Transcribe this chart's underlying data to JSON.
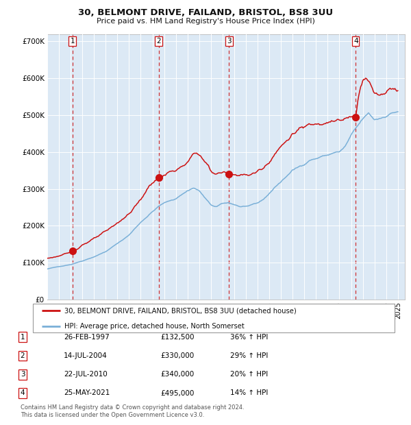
{
  "title1": "30, BELMONT DRIVE, FAILAND, BRISTOL, BS8 3UU",
  "title2": "Price paid vs. HM Land Registry's House Price Index (HPI)",
  "legend_line1": "30, BELMONT DRIVE, FAILAND, BRISTOL, BS8 3UU (detached house)",
  "legend_line2": "HPI: Average price, detached house, North Somerset",
  "footer1": "Contains HM Land Registry data © Crown copyright and database right 2024.",
  "footer2": "This data is licensed under the Open Government Licence v3.0.",
  "table_rows": [
    {
      "num": 1,
      "date_str": "26-FEB-1997",
      "price_str": "£132,500",
      "hpi_str": "36% ↑ HPI"
    },
    {
      "num": 2,
      "date_str": "14-JUL-2004",
      "price_str": "£330,000",
      "hpi_str": "29% ↑ HPI"
    },
    {
      "num": 3,
      "date_str": "22-JUL-2010",
      "price_str": "£340,000",
      "hpi_str": "20% ↑ HPI"
    },
    {
      "num": 4,
      "date_str": "25-MAY-2021",
      "price_str": "£495,000",
      "hpi_str": "14% ↑ HPI"
    }
  ],
  "hpi_color": "#7ab0d8",
  "price_color": "#cc1111",
  "marker_color": "#cc1111",
  "vline_color": "#cc1111",
  "bg_color": "#dce9f5",
  "ylim": [
    0,
    720000
  ],
  "yticks": [
    0,
    100000,
    200000,
    300000,
    400000,
    500000,
    600000,
    700000
  ],
  "ytick_labels": [
    "£0",
    "£100K",
    "£200K",
    "£300K",
    "£400K",
    "£500K",
    "£600K",
    "£700K"
  ],
  "xmin_year": 1995,
  "xmax_year": 2025.6,
  "xticks": [
    1995,
    1996,
    1997,
    1998,
    1999,
    2000,
    2001,
    2002,
    2003,
    2004,
    2005,
    2006,
    2007,
    2008,
    2009,
    2010,
    2011,
    2012,
    2013,
    2014,
    2015,
    2016,
    2017,
    2018,
    2019,
    2020,
    2021,
    2022,
    2023,
    2024,
    2025
  ],
  "trans_dates": [
    1997.147,
    2004.535,
    2010.553,
    2021.397
  ],
  "trans_prices": [
    132500,
    330000,
    340000,
    495000
  ],
  "trans_nums": [
    1,
    2,
    3,
    4
  ],
  "hpi_anchors": [
    [
      1995.0,
      83000
    ],
    [
      1996.0,
      90000
    ],
    [
      1997.0,
      95000
    ],
    [
      1997.2,
      97000
    ],
    [
      1998.0,
      105000
    ],
    [
      1999.0,
      116000
    ],
    [
      2000.0,
      130000
    ],
    [
      2001.0,
      152000
    ],
    [
      2002.0,
      175000
    ],
    [
      2003.0,
      210000
    ],
    [
      2004.0,
      238000
    ],
    [
      2004.5,
      252000
    ],
    [
      2005.0,
      262000
    ],
    [
      2006.0,
      274000
    ],
    [
      2007.0,
      295000
    ],
    [
      2007.5,
      303000
    ],
    [
      2008.0,
      295000
    ],
    [
      2009.0,
      256000
    ],
    [
      2009.5,
      252000
    ],
    [
      2010.0,
      260000
    ],
    [
      2010.5,
      263000
    ],
    [
      2011.0,
      258000
    ],
    [
      2011.5,
      252000
    ],
    [
      2012.0,
      253000
    ],
    [
      2012.5,
      255000
    ],
    [
      2013.0,
      262000
    ],
    [
      2013.5,
      272000
    ],
    [
      2014.0,
      288000
    ],
    [
      2014.5,
      305000
    ],
    [
      2015.0,
      320000
    ],
    [
      2015.5,
      335000
    ],
    [
      2016.0,
      350000
    ],
    [
      2016.5,
      360000
    ],
    [
      2017.0,
      368000
    ],
    [
      2017.5,
      378000
    ],
    [
      2018.0,
      382000
    ],
    [
      2018.5,
      388000
    ],
    [
      2019.0,
      392000
    ],
    [
      2019.5,
      398000
    ],
    [
      2020.0,
      400000
    ],
    [
      2020.5,
      415000
    ],
    [
      2021.0,
      445000
    ],
    [
      2021.5,
      468000
    ],
    [
      2022.0,
      490000
    ],
    [
      2022.5,
      505000
    ],
    [
      2023.0,
      488000
    ],
    [
      2023.5,
      492000
    ],
    [
      2024.0,
      498000
    ],
    [
      2024.5,
      505000
    ],
    [
      2024.9,
      510000
    ]
  ],
  "price_anchors": [
    [
      1995.0,
      112000
    ],
    [
      1996.0,
      118000
    ],
    [
      1997.0,
      128000
    ],
    [
      1997.147,
      132500
    ],
    [
      1997.5,
      137000
    ],
    [
      1998.0,
      148000
    ],
    [
      1999.0,
      165000
    ],
    [
      2000.0,
      185000
    ],
    [
      2001.0,
      208000
    ],
    [
      2002.0,
      232000
    ],
    [
      2003.0,
      272000
    ],
    [
      2003.5,
      296000
    ],
    [
      2004.0,
      318000
    ],
    [
      2004.535,
      330000
    ],
    [
      2005.0,
      338000
    ],
    [
      2005.5,
      345000
    ],
    [
      2006.0,
      352000
    ],
    [
      2006.5,
      358000
    ],
    [
      2007.0,
      370000
    ],
    [
      2007.5,
      395000
    ],
    [
      2007.8,
      402000
    ],
    [
      2008.3,
      380000
    ],
    [
      2008.8,
      362000
    ],
    [
      2009.0,
      348000
    ],
    [
      2009.5,
      340000
    ],
    [
      2010.0,
      345000
    ],
    [
      2010.553,
      340000
    ],
    [
      2011.0,
      338000
    ],
    [
      2011.5,
      340000
    ],
    [
      2012.0,
      336000
    ],
    [
      2012.5,
      340000
    ],
    [
      2013.0,
      348000
    ],
    [
      2013.5,
      358000
    ],
    [
      2014.0,
      375000
    ],
    [
      2014.5,
      395000
    ],
    [
      2015.0,
      415000
    ],
    [
      2015.5,
      432000
    ],
    [
      2016.0,
      448000
    ],
    [
      2016.5,
      460000
    ],
    [
      2017.0,
      468000
    ],
    [
      2017.5,
      475000
    ],
    [
      2018.0,
      478000
    ],
    [
      2018.5,
      480000
    ],
    [
      2019.0,
      482000
    ],
    [
      2019.5,
      485000
    ],
    [
      2020.0,
      484000
    ],
    [
      2020.5,
      490000
    ],
    [
      2021.0,
      494000
    ],
    [
      2021.397,
      495000
    ],
    [
      2021.6,
      545000
    ],
    [
      2021.8,
      578000
    ],
    [
      2022.0,
      598000
    ],
    [
      2022.3,
      605000
    ],
    [
      2022.5,
      592000
    ],
    [
      2022.8,
      572000
    ],
    [
      2023.0,
      560000
    ],
    [
      2023.3,
      555000
    ],
    [
      2023.6,
      558000
    ],
    [
      2024.0,
      562000
    ],
    [
      2024.3,
      572000
    ],
    [
      2024.6,
      578000
    ],
    [
      2024.9,
      568000
    ]
  ]
}
